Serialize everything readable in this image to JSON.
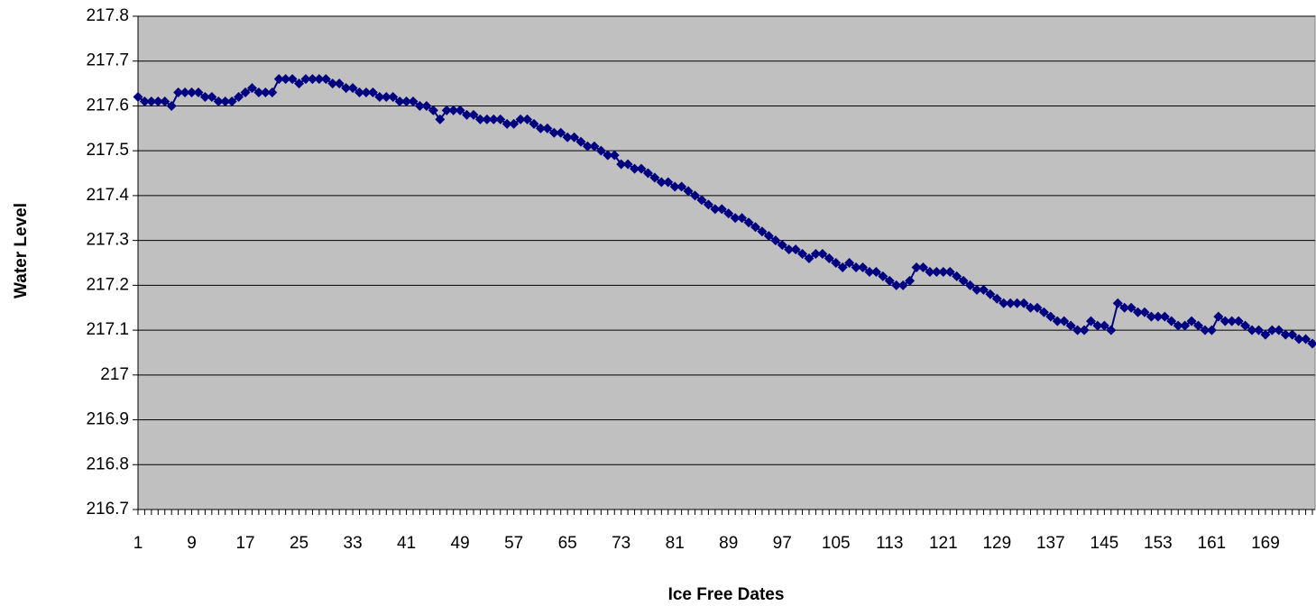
{
  "chart_data": {
    "type": "line",
    "x_label": "Ice Free Dates",
    "y_label": "Water Level",
    "color": "#000080",
    "plot_background": "#c0c0c0",
    "grid": true,
    "x": [
      1,
      2,
      3,
      4,
      5,
      6,
      7,
      8,
      9,
      10,
      11,
      12,
      13,
      14,
      15,
      16,
      17,
      18,
      19,
      20,
      21,
      22,
      23,
      24,
      25,
      26,
      27,
      28,
      29,
      30,
      31,
      32,
      33,
      34,
      35,
      36,
      37,
      38,
      39,
      40,
      41,
      42,
      43,
      44,
      45,
      46,
      47,
      48,
      49,
      50,
      51,
      52,
      53,
      54,
      55,
      56,
      57,
      58,
      59,
      60,
      61,
      62,
      63,
      64,
      65,
      66,
      67,
      68,
      69,
      70,
      71,
      72,
      73,
      74,
      75,
      76,
      77,
      78,
      79,
      80,
      81,
      82,
      83,
      84,
      85,
      86,
      87,
      88,
      89,
      90,
      91,
      92,
      93,
      94,
      95,
      96,
      97,
      98,
      99,
      100,
      101,
      102,
      103,
      104,
      105,
      106,
      107,
      108,
      109,
      110,
      111,
      112,
      113,
      114,
      115,
      116,
      117,
      118,
      119,
      120,
      121,
      122,
      123,
      124,
      125,
      126,
      127,
      128,
      129,
      130,
      131,
      132,
      133,
      134,
      135,
      136,
      137,
      138,
      139,
      140,
      141,
      142,
      143,
      144,
      145,
      146,
      147,
      148,
      149,
      150,
      151,
      152,
      153,
      154,
      155,
      156,
      157,
      158,
      159,
      160,
      161,
      162,
      163,
      164,
      165,
      166,
      167,
      168,
      169,
      170,
      171,
      172,
      173,
      174,
      175,
      176
    ],
    "values": [
      217.62,
      217.61,
      217.61,
      217.61,
      217.61,
      217.6,
      217.63,
      217.63,
      217.63,
      217.63,
      217.62,
      217.62,
      217.61,
      217.61,
      217.61,
      217.62,
      217.63,
      217.64,
      217.63,
      217.63,
      217.63,
      217.66,
      217.66,
      217.66,
      217.65,
      217.66,
      217.66,
      217.66,
      217.66,
      217.65,
      217.65,
      217.64,
      217.64,
      217.63,
      217.63,
      217.63,
      217.62,
      217.62,
      217.62,
      217.61,
      217.61,
      217.61,
      217.6,
      217.6,
      217.59,
      217.57,
      217.59,
      217.59,
      217.59,
      217.58,
      217.58,
      217.57,
      217.57,
      217.57,
      217.57,
      217.56,
      217.56,
      217.57,
      217.57,
      217.56,
      217.55,
      217.55,
      217.54,
      217.54,
      217.53,
      217.53,
      217.52,
      217.51,
      217.51,
      217.5,
      217.49,
      217.49,
      217.47,
      217.47,
      217.46,
      217.46,
      217.45,
      217.44,
      217.43,
      217.43,
      217.42,
      217.42,
      217.41,
      217.4,
      217.39,
      217.38,
      217.37,
      217.37,
      217.36,
      217.35,
      217.35,
      217.34,
      217.33,
      217.32,
      217.31,
      217.3,
      217.29,
      217.28,
      217.28,
      217.27,
      217.26,
      217.27,
      217.27,
      217.26,
      217.25,
      217.24,
      217.25,
      217.24,
      217.24,
      217.23,
      217.23,
      217.22,
      217.21,
      217.2,
      217.2,
      217.21,
      217.24,
      217.24,
      217.23,
      217.23,
      217.23,
      217.23,
      217.22,
      217.21,
      217.2,
      217.19,
      217.19,
      217.18,
      217.17,
      217.16,
      217.16,
      217.16,
      217.16,
      217.15,
      217.15,
      217.14,
      217.13,
      217.12,
      217.12,
      217.11,
      217.1,
      217.1,
      217.12,
      217.11,
      217.11,
      217.1,
      217.16,
      217.15,
      217.15,
      217.14,
      217.14,
      217.13,
      217.13,
      217.13,
      217.12,
      217.11,
      217.11,
      217.12,
      217.11,
      217.1,
      217.1,
      217.13,
      217.12,
      217.12,
      217.12,
      217.11,
      217.1,
      217.1,
      217.09,
      217.1,
      217.1,
      217.09,
      217.09,
      217.08,
      217.08,
      217.07
    ],
    "xlim": [
      1,
      176
    ],
    "xticks": [
      1,
      9,
      17,
      25,
      33,
      41,
      49,
      57,
      65,
      73,
      81,
      89,
      97,
      105,
      113,
      121,
      129,
      137,
      145,
      153,
      161,
      169
    ],
    "ylim": [
      216.7,
      217.8
    ],
    "yticks": [
      216.7,
      216.8,
      216.9,
      217,
      217.1,
      217.2,
      217.3,
      217.4,
      217.5,
      217.6,
      217.7,
      217.8
    ]
  }
}
